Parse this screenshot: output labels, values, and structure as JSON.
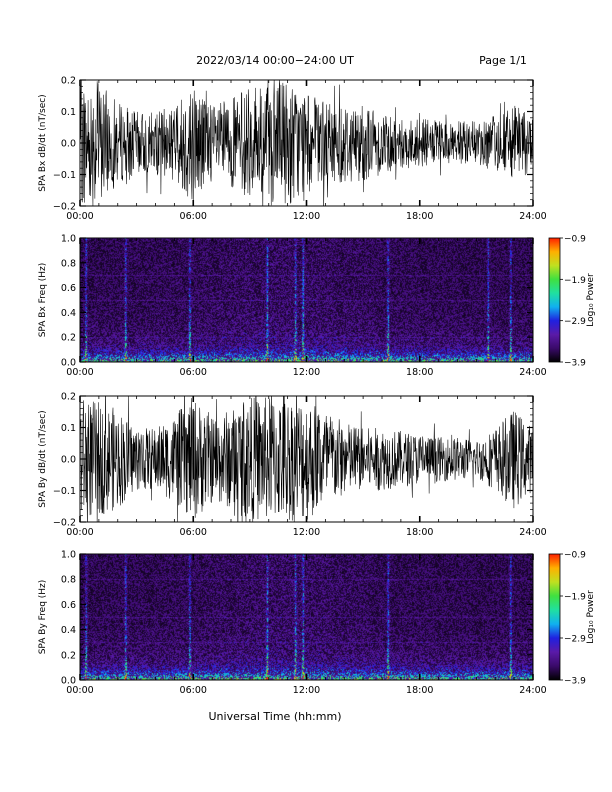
{
  "page": {
    "title": "2022/03/14  00:00−24:00 UT",
    "page_label": "Page 1/1",
    "xaxis_title": "Universal Time (hh:mm)"
  },
  "colorbar": {
    "label": "Log₁₀ Power",
    "ticks": [
      "−0.9",
      "−1.9",
      "−2.9",
      "−3.9"
    ],
    "tick_values": [
      -0.9,
      -1.9,
      -2.9,
      -3.9
    ],
    "range": [
      -3.9,
      -0.9
    ],
    "colormap": [
      "#000000",
      "#3a0a6a",
      "#5a1aa8",
      "#2020e0",
      "#10b0f0",
      "#20e0a0",
      "#40e040",
      "#c0e020",
      "#ffb000",
      "#ff2000"
    ]
  },
  "chart_data": [
    {
      "type": "line",
      "ylabel": "SPA Bx dB/dt (nT/sec)",
      "ylim": [
        -0.2,
        0.2
      ],
      "xlim_hours": [
        0,
        24
      ],
      "xticks": [
        "00:00",
        "06:00",
        "12:00",
        "18:00",
        "24:00"
      ],
      "yticks": [
        "−0.2",
        "−0.1",
        "0.0",
        "0.1",
        "0.2"
      ],
      "ytick_values": [
        -0.2,
        -0.1,
        0.0,
        0.1,
        0.2
      ],
      "series_color": "#000000",
      "envelope_hours": [
        0,
        1,
        2,
        3,
        4,
        5,
        6,
        7,
        8,
        9,
        10,
        11,
        12,
        13,
        14,
        15,
        16,
        17,
        18,
        19,
        20,
        21,
        22,
        23,
        24
      ],
      "envelope_amplitude": [
        0.2,
        0.2,
        0.13,
        0.1,
        0.1,
        0.12,
        0.2,
        0.12,
        0.14,
        0.18,
        0.2,
        0.2,
        0.16,
        0.13,
        0.13,
        0.12,
        0.1,
        0.09,
        0.08,
        0.07,
        0.07,
        0.07,
        0.09,
        0.12,
        0.09
      ]
    },
    {
      "type": "heatmap",
      "ylabel": "SPA Bx Freq (Hz)",
      "ylim": [
        0.0,
        1.0
      ],
      "xlim_hours": [
        0,
        24
      ],
      "xticks": [
        "00:00",
        "06:00",
        "12:00",
        "18:00",
        "24:00"
      ],
      "yticks": [
        "0.0",
        "0.2",
        "0.4",
        "0.6",
        "0.8",
        "1.0"
      ],
      "ytick_values": [
        0.0,
        0.2,
        0.4,
        0.6,
        0.8,
        1.0
      ],
      "color_scale": "Log10 Power",
      "zlim": [
        -3.9,
        -0.9
      ],
      "bright_bands_hours": [
        0.3,
        2.4,
        5.8,
        9.9,
        11.4,
        11.8,
        16.3,
        21.6,
        22.8
      ]
    },
    {
      "type": "line",
      "ylabel": "SPA By dB/dt (nT/sec)",
      "ylim": [
        -0.2,
        0.2
      ],
      "xlim_hours": [
        0,
        24
      ],
      "xticks": [
        "00:00",
        "06:00",
        "12:00",
        "18:00",
        "24:00"
      ],
      "yticks": [
        "−0.2",
        "−0.1",
        "0.0",
        "0.1",
        "0.2"
      ],
      "ytick_values": [
        -0.2,
        -0.1,
        0.0,
        0.1,
        0.2
      ],
      "series_color": "#000000",
      "envelope_hours": [
        0,
        1,
        2,
        3,
        4,
        5,
        6,
        7,
        8,
        9,
        10,
        11,
        12,
        13,
        14,
        15,
        16,
        17,
        18,
        19,
        20,
        21,
        22,
        23,
        24
      ],
      "envelope_amplitude": [
        0.2,
        0.18,
        0.16,
        0.1,
        0.1,
        0.14,
        0.2,
        0.14,
        0.16,
        0.2,
        0.2,
        0.2,
        0.2,
        0.16,
        0.12,
        0.1,
        0.1,
        0.09,
        0.08,
        0.07,
        0.07,
        0.06,
        0.1,
        0.16,
        0.1
      ]
    },
    {
      "type": "heatmap",
      "ylabel": "SPA By Freq (Hz)",
      "ylim": [
        0.0,
        1.0
      ],
      "xlim_hours": [
        0,
        24
      ],
      "xticks": [
        "00:00",
        "06:00",
        "12:00",
        "18:00",
        "24:00"
      ],
      "yticks": [
        "0.0",
        "0.2",
        "0.4",
        "0.6",
        "0.8",
        "1.0"
      ],
      "ytick_values": [
        0.0,
        0.2,
        0.4,
        0.6,
        0.8,
        1.0
      ],
      "color_scale": "Log10 Power",
      "zlim": [
        -3.9,
        -0.9
      ],
      "bright_bands_hours": [
        0.3,
        2.4,
        5.8,
        9.9,
        11.4,
        11.8,
        16.3,
        22.8
      ]
    }
  ]
}
